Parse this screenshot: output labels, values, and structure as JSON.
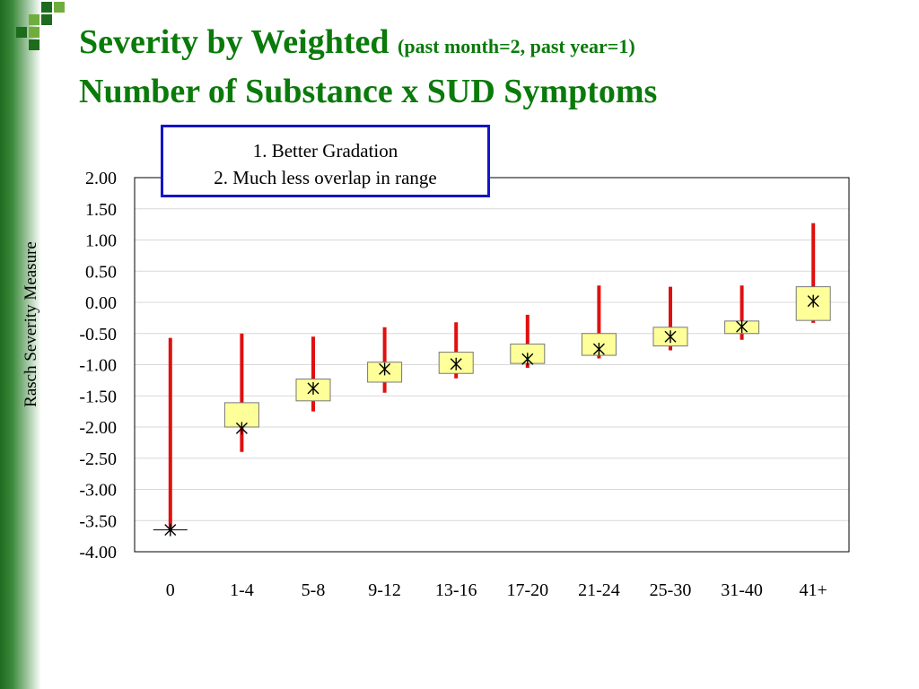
{
  "slide": {
    "title_main": "Severity by Weighted",
    "title_sub": "(past month=2, past year=1)",
    "title_line2": "Number of Substance x SUD Symptoms",
    "callout_line1": "1. Better Gradation",
    "callout_line2": "2. Much less overlap in range",
    "accent_color": "#0a7a0a"
  },
  "chart_data": {
    "type": "box",
    "ylabel": "Rasch Severity Measure",
    "xlabel": "",
    "ylim": [
      -4.0,
      2.0
    ],
    "yticks": [
      "2.00",
      "1.50",
      "1.00",
      "0.50",
      "0.00",
      "-0.50",
      "-1.00",
      "-1.50",
      "-2.00",
      "-2.50",
      "-3.00",
      "-3.50",
      "-4.00"
    ],
    "categories": [
      "0",
      "1-4",
      "5-8",
      "9-12",
      "13-16",
      "17-20",
      "21-24",
      "25-30",
      "31-40",
      "41+"
    ],
    "whisker_low": [
      -3.65,
      -2.4,
      -1.75,
      -1.45,
      -1.22,
      -1.05,
      -0.9,
      -0.77,
      -0.6,
      -0.33
    ],
    "whisker_high": [
      -0.57,
      -0.5,
      -0.55,
      -0.4,
      -0.32,
      -0.2,
      0.27,
      0.25,
      0.27,
      1.27
    ],
    "box_low": [
      -3.65,
      -2.0,
      -1.58,
      -1.28,
      -1.14,
      -0.98,
      -0.85,
      -0.7,
      -0.5,
      -0.29
    ],
    "box_high": [
      -3.65,
      -1.61,
      -1.23,
      -0.96,
      -0.8,
      -0.67,
      -0.5,
      -0.4,
      -0.3,
      0.25
    ],
    "center": [
      -3.65,
      -2.02,
      -1.38,
      -1.07,
      -0.99,
      -0.91,
      -0.75,
      -0.55,
      -0.39,
      0.02
    ],
    "colors": {
      "whisker": "#e01010",
      "box_fill": "#ffff99",
      "box_stroke": "#777777",
      "grid": "#d8d8d8"
    },
    "grid": true
  }
}
